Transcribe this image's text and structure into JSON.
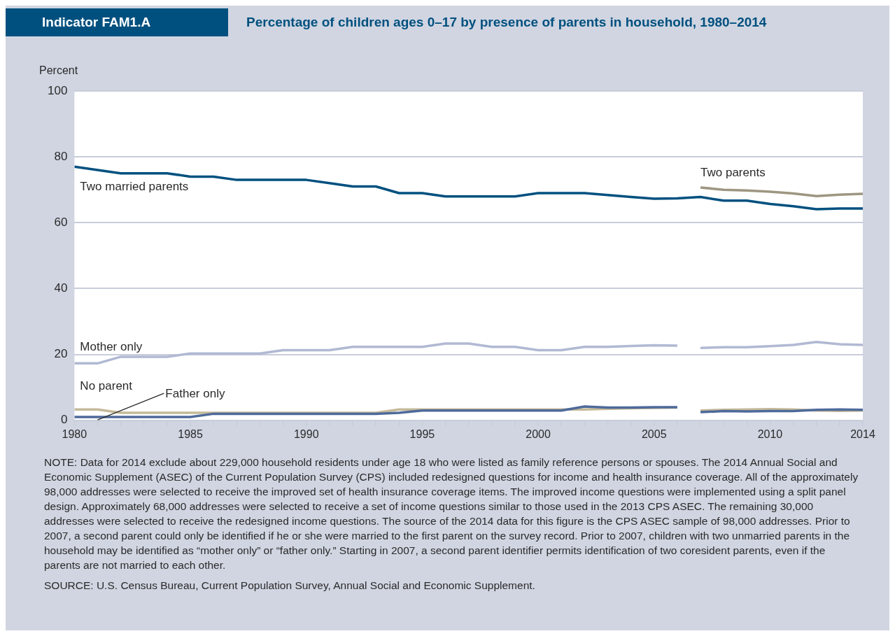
{
  "chart_data": {
    "type": "line",
    "title": "Percentage of children ages 0–17 by presence of parents in household, 1980–2014",
    "subtitle": "Indicator FAM1.A",
    "ylabel": "Percent",
    "x": [
      1980,
      1981,
      1982,
      1983,
      1984,
      1985,
      1986,
      1987,
      1988,
      1989,
      1990,
      1991,
      1992,
      1993,
      1994,
      1995,
      1996,
      1997,
      1998,
      1999,
      2000,
      2001,
      2002,
      2003,
      2004,
      2005,
      2006,
      2007,
      2008,
      2009,
      2010,
      2011,
      2012,
      2013,
      2014
    ],
    "series": [
      {
        "name": "Two married parents",
        "color": "#00507f",
        "values": [
          77,
          76,
          75,
          75,
          75,
          74,
          74,
          73,
          73,
          73,
          73,
          72,
          71,
          71,
          69,
          69,
          68,
          68,
          68,
          68,
          69,
          69,
          69,
          68.4,
          67.8,
          67.3,
          67.4,
          67.8,
          66.7,
          66.7,
          65.7,
          65,
          64.1,
          64.3,
          64.3
        ]
      },
      {
        "name": "Two parents",
        "color": "#9e9681",
        "values": [
          null,
          null,
          null,
          null,
          null,
          null,
          null,
          null,
          null,
          null,
          null,
          null,
          null,
          null,
          null,
          null,
          null,
          null,
          null,
          null,
          null,
          null,
          null,
          null,
          null,
          null,
          null,
          70.7,
          70,
          69.8,
          69.4,
          68.9,
          68.1,
          68.5,
          68.8
        ]
      },
      {
        "name": "Mother only",
        "color": "#b1b9d3",
        "values": [
          17.3,
          17.3,
          19.3,
          19.3,
          19.3,
          20.3,
          20.3,
          20.3,
          20.3,
          21.3,
          21.3,
          21.3,
          22.3,
          22.3,
          22.3,
          22.3,
          23.3,
          23.3,
          22.3,
          22.3,
          21.3,
          21.3,
          22.3,
          22.3,
          22.6,
          22.8,
          22.7,
          null,
          null,
          null,
          null,
          null,
          null,
          null,
          null
        ]
      },
      {
        "name": "Father only",
        "color": "#4e6a9b",
        "values": [
          1,
          1,
          1,
          1,
          1,
          1,
          2,
          2,
          2,
          2,
          2,
          2,
          2,
          2,
          2.3,
          3,
          3,
          3,
          3,
          3,
          3,
          3,
          4.2,
          3.9,
          3.9,
          4,
          4,
          null,
          null,
          null,
          null,
          null,
          null,
          null,
          null
        ]
      },
      {
        "name": "No parent",
        "color": "#c4b999",
        "values": [
          3.3,
          3.3,
          2.3,
          2.3,
          2.3,
          2.3,
          2.3,
          2.3,
          2.3,
          2.3,
          2.3,
          2.3,
          2.3,
          2.3,
          3.3,
          3.3,
          3.3,
          3.3,
          3.3,
          3.3,
          3.3,
          3.3,
          3.3,
          3.5,
          3.7,
          3.8,
          3.9,
          null,
          null,
          null,
          null,
          null,
          null,
          null,
          null
        ]
      },
      {
        "color": "#b1b9d3",
        "values": [
          null,
          null,
          null,
          null,
          null,
          null,
          null,
          null,
          null,
          null,
          null,
          null,
          null,
          null,
          null,
          null,
          null,
          null,
          null,
          null,
          null,
          null,
          null,
          null,
          null,
          null,
          null,
          22,
          22.2,
          22.2,
          22.5,
          22.9,
          23.8,
          23.1,
          22.9
        ]
      },
      {
        "color": "#4e6a9b",
        "values": [
          null,
          null,
          null,
          null,
          null,
          null,
          null,
          null,
          null,
          null,
          null,
          null,
          null,
          null,
          null,
          null,
          null,
          null,
          null,
          null,
          null,
          null,
          null,
          null,
          null,
          null,
          null,
          2.5,
          2.8,
          2.7,
          2.8,
          2.8,
          3.2,
          3.3,
          3.2
        ]
      },
      {
        "color": "#c4b999",
        "values": [
          null,
          null,
          null,
          null,
          null,
          null,
          null,
          null,
          null,
          null,
          null,
          null,
          null,
          null,
          null,
          null,
          null,
          null,
          null,
          null,
          null,
          null,
          null,
          null,
          null,
          null,
          null,
          3,
          3.2,
          3.3,
          3.4,
          3.3,
          3,
          2.9,
          3
        ]
      }
    ],
    "xlim": [
      1980,
      2014
    ],
    "xticks": [
      1980,
      {
        "value": 1981,
        "label": null
      },
      {
        "value": 1982,
        "label": null
      },
      {
        "value": 1983,
        "label": null
      },
      {
        "value": 1984,
        "label": null
      },
      1985,
      {
        "value": 1986,
        "label": null
      },
      {
        "value": 1987,
        "label": null
      },
      {
        "value": 1988,
        "label": null
      },
      {
        "value": 1989,
        "label": null
      },
      1990,
      {
        "value": 1991,
        "label": null
      },
      {
        "value": 1992,
        "label": null
      },
      {
        "value": 1993,
        "label": null
      },
      {
        "value": 1994,
        "label": null
      },
      1995,
      {
        "value": 1996,
        "label": null
      },
      {
        "value": 1997,
        "label": null
      },
      {
        "value": 1998,
        "label": null
      },
      {
        "value": 1999,
        "label": null
      },
      2000,
      {
        "value": 2001,
        "label": null
      },
      {
        "value": 2002,
        "label": null
      },
      {
        "value": 2003,
        "label": null
      },
      {
        "value": 2004,
        "label": null
      },
      2005,
      {
        "value": 2006,
        "label": null
      },
      {
        "value": 2007,
        "label": null
      },
      {
        "value": 2008,
        "label": null
      },
      {
        "value": 2009,
        "label": null
      },
      2010,
      {
        "value": 2011,
        "label": null
      },
      {
        "value": 2012,
        "label": null
      },
      {
        "value": 2013,
        "label": null
      },
      2014
    ],
    "ylim": [
      0,
      100
    ],
    "yticks": [
      0,
      20,
      40,
      60,
      80,
      100
    ],
    "grid": "y",
    "legend": false,
    "marker": "none",
    "line_style": "solid",
    "annotations": [
      "NOTE: Data for 2014 exclude about 229,000 household residents under age 18 who were listed as family reference persons or spouses. The 2014 Annual Social and Economic Supplement (ASEC) of the Current Population Survey (CPS) included redesigned questions for income and health insurance coverage. All of the approximately 98,000 addresses were selected to receive the improved set of health insurance coverage items. The improved income questions were implemented using a split panel design. Approximately 68,000 addresses were selected to receive a set of income questions similar to those used in the 2013 CPS ASEC. The remaining 30,000 addresses were selected to receive the redesigned income questions. The source of the 2014 data for this figure is the CPS ASEC sample of 98,000 addresses. Prior to 2007, a second parent could only be identified if he or she were married to the first parent on the survey record. Prior to 2007, children with two unmarried parents in the household may be identified as “mother only” or “father only.” Starting in 2007, a second parent identifier permits identification of two coresident parents, even if the parents are not married to each other.",
      "SOURCE: U.S. Census Bureau, Current Population Survey, Annual Social and Economic Supplement."
    ]
  }
}
